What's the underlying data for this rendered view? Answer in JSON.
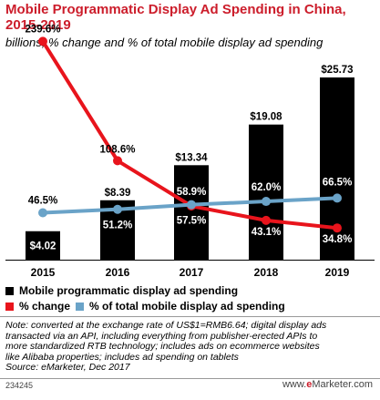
{
  "title": "Mobile Programmatic Display Ad Spending in China, 2015-2019",
  "subtitle": "billions, % change and % of total mobile display ad spending",
  "chart_data": {
    "type": "bar",
    "categories": [
      "2015",
      "2016",
      "2017",
      "2018",
      "2019"
    ],
    "series": [
      {
        "name": "Mobile programmatic display ad spending",
        "type": "bar",
        "values": [
          4.02,
          8.39,
          13.34,
          19.08,
          25.73
        ],
        "labels": [
          "$4.02",
          "$8.39",
          "$13.34",
          "$19.08",
          "$25.73"
        ]
      },
      {
        "name": "% change",
        "type": "line",
        "values": [
          239.6,
          108.6,
          58.9,
          43.1,
          34.8
        ],
        "labels": [
          "239.6%",
          "108.6%",
          "58.9%",
          "43.1%",
          "34.8%"
        ]
      },
      {
        "name": "% of total mobile display ad spending",
        "type": "line",
        "values": [
          46.5,
          51.2,
          57.5,
          62.0,
          66.5
        ],
        "labels": [
          "46.5%",
          "51.2%",
          "57.5%",
          "62.0%",
          "66.5%"
        ]
      }
    ],
    "colors": {
      "bar": "#000000",
      "change": "#e8141c",
      "share": "#6aa3c8"
    },
    "legend_position": "bottom"
  },
  "legend": {
    "row1": [
      {
        "label": "Mobile programmatic display ad spending",
        "color": "#000000"
      }
    ],
    "row2": [
      {
        "label": "% change",
        "color": "#e8141c"
      },
      {
        "label": "% of total mobile display ad spending",
        "color": "#6aa3c8"
      }
    ]
  },
  "note_lines": [
    "Note: converted at the exchange rate of US$1=RMB6.64; digital display ads",
    "transacted via an API, including everything from publisher-erected APIs to",
    "more standardized RTB technology; includes ads on ecommerce websites",
    "like Alibaba properties; includes ad spending on tablets",
    "Source: eMarketer, Dec 2017"
  ],
  "footer": {
    "id": "234245",
    "brand_prefix": "www.",
    "brand_e": "e",
    "brand_rest": "Marketer.com"
  }
}
